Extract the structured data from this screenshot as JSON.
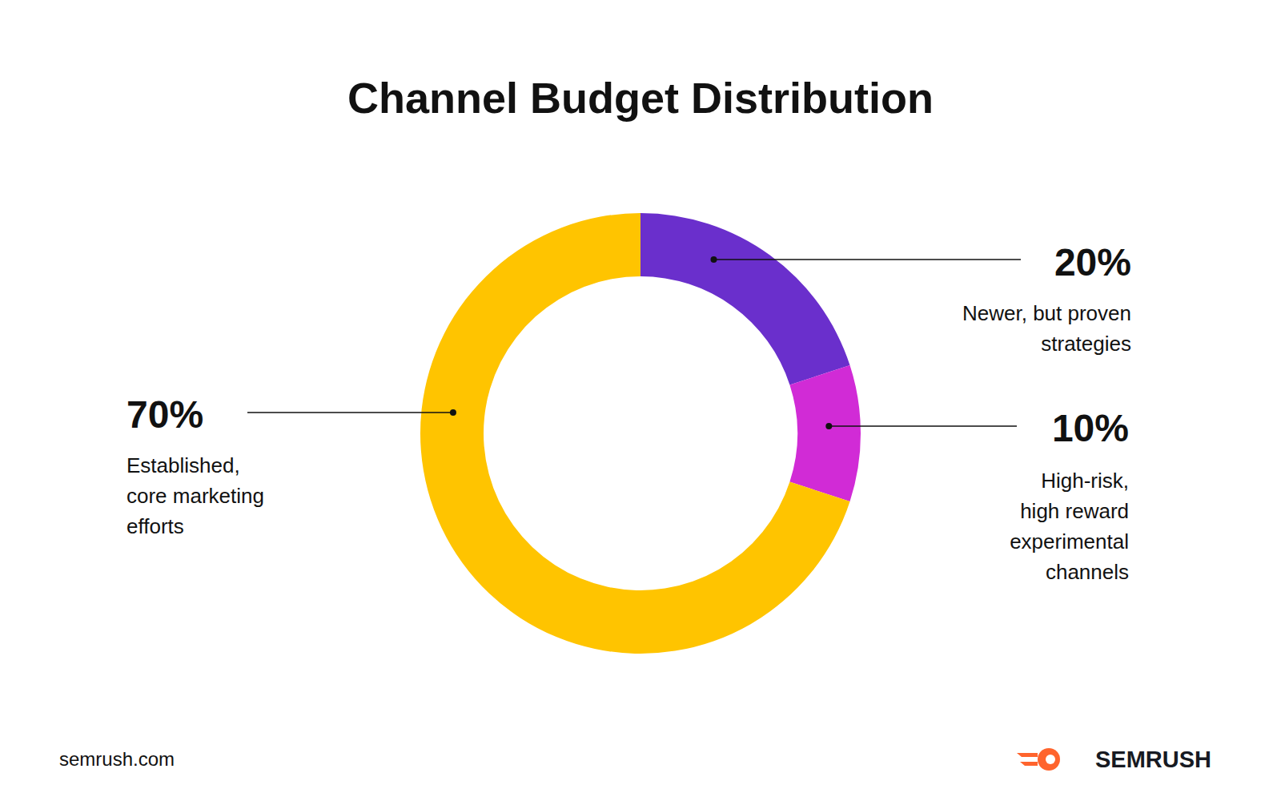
{
  "chart_data": {
    "type": "pie",
    "title": "Channel Budget Distribution",
    "categories": [
      [
        "Newer, but proven",
        "strategies"
      ],
      [
        "High-risk,",
        "high reward",
        "experimental",
        "channels"
      ],
      [
        "Established,",
        "core marketing",
        "efforts"
      ]
    ],
    "values": [
      20,
      10,
      70
    ],
    "value_labels": [
      "20%",
      "10%",
      "70%"
    ],
    "colors": [
      "#6a2fcc",
      "#d12bd6",
      "#ffc400"
    ],
    "data_labels": true,
    "source": "semrush.com",
    "brand": "SEMRUSH"
  }
}
